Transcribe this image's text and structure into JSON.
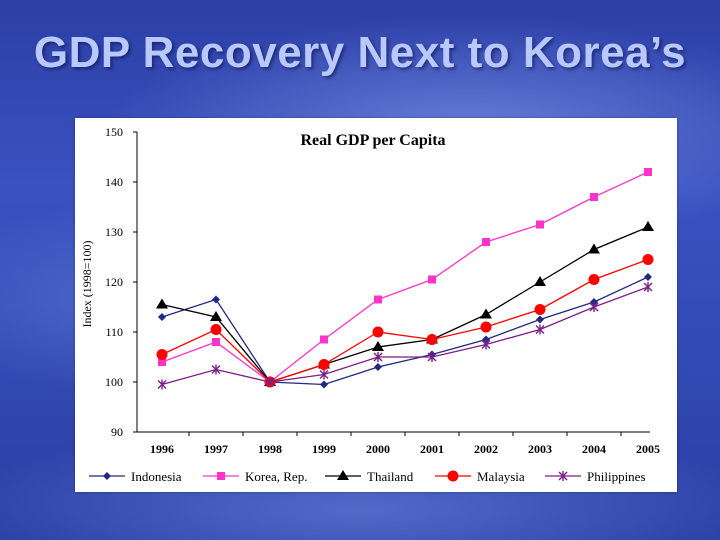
{
  "slide": {
    "title": "GDP Recovery Next to Korea’s"
  },
  "chart_data": {
    "type": "line",
    "title": "Real GDP per Capita",
    "xlabel": "",
    "ylabel": "Index (1998=100)",
    "x": [
      "1996",
      "1997",
      "1998",
      "1999",
      "2000",
      "2001",
      "2002",
      "2003",
      "2004",
      "2005"
    ],
    "ylim": [
      90,
      150
    ],
    "yticks": [
      90,
      100,
      110,
      120,
      130,
      140,
      150
    ],
    "grid": false,
    "legend": "bottom",
    "series": [
      {
        "name": "Indonesia",
        "color": "#1f2a80",
        "marker": "diamond",
        "values": [
          113,
          116.5,
          100,
          99.5,
          103,
          105.5,
          108.5,
          112.5,
          116,
          121
        ]
      },
      {
        "name": "Korea, Rep.",
        "color": "#ff33cc",
        "marker": "square",
        "values": [
          104,
          108,
          100,
          108.5,
          116.5,
          120.5,
          128,
          131.5,
          137,
          142
        ]
      },
      {
        "name": "Thailand",
        "color": "#000000",
        "marker": "triangle",
        "values": [
          115.5,
          113,
          100,
          103.5,
          107,
          108.5,
          113.5,
          120,
          126.5,
          131
        ]
      },
      {
        "name": "Malaysia",
        "color": "#ff0000",
        "marker": "circle",
        "values": [
          105.5,
          110.5,
          100,
          103.5,
          110,
          108.5,
          111,
          114.5,
          120.5,
          124.5
        ]
      },
      {
        "name": "Philippines",
        "color": "#7a1f86",
        "marker": "star",
        "values": [
          99.5,
          102.5,
          100,
          101.5,
          105,
          105,
          107.5,
          110.5,
          115,
          119
        ]
      }
    ]
  }
}
